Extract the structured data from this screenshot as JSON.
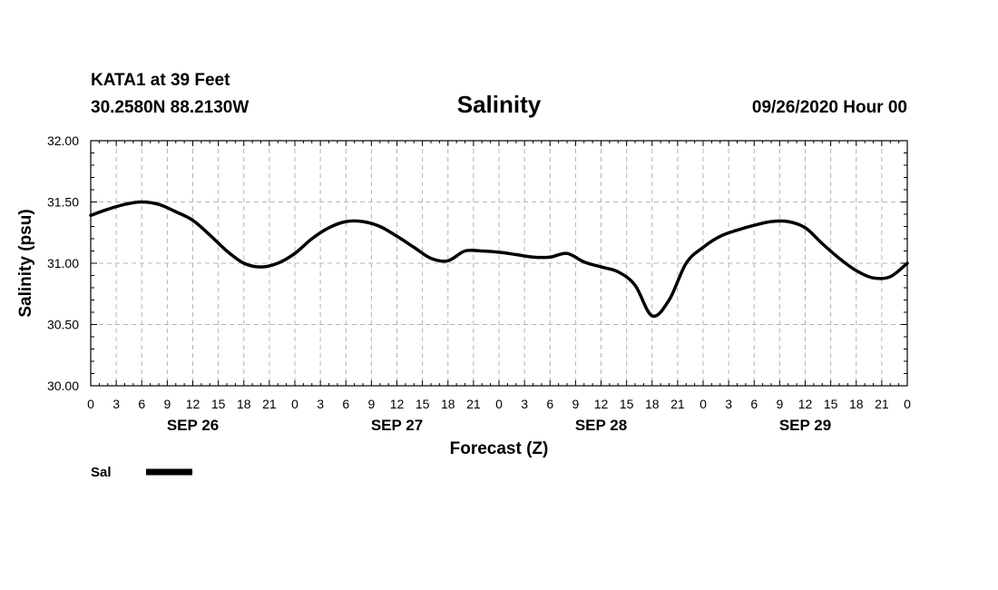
{
  "header": {
    "station": "KATA1 at 39 Feet",
    "coords": "30.2580N 88.2130W",
    "run": "09/26/2020 Hour 00"
  },
  "chart_data": {
    "type": "line",
    "title": "Salinity",
    "xlabel": "Forecast (Z)",
    "ylabel": "Salinity (psu)",
    "ylim": [
      30.0,
      32.0
    ],
    "xlim_hours": [
      0,
      96
    ],
    "grid": true,
    "y_ticks": [
      "30.00",
      "30.50",
      "31.00",
      "31.50",
      "32.00"
    ],
    "x_tick_labels": [
      "0",
      "3",
      "6",
      "9",
      "12",
      "15",
      "18",
      "21",
      "0",
      "3",
      "6",
      "9",
      "12",
      "15",
      "18",
      "21",
      "0",
      "3",
      "6",
      "9",
      "12",
      "15",
      "18",
      "21",
      "0",
      "3",
      "6",
      "9",
      "12",
      "15",
      "18",
      "21",
      "0"
    ],
    "day_labels": [
      {
        "label": "SEP 26",
        "hour": 12
      },
      {
        "label": "SEP 27",
        "hour": 36
      },
      {
        "label": "SEP 28",
        "hour": 60
      },
      {
        "label": "SEP 29",
        "hour": 84
      }
    ],
    "legend": {
      "placement": "bottom-left"
    },
    "series": [
      {
        "name": "Sal",
        "color": "#000000",
        "x": [
          0,
          2,
          4,
          6,
          8,
          10,
          12,
          14,
          16,
          18,
          20,
          22,
          24,
          26,
          28,
          30,
          32,
          34,
          36,
          38,
          40,
          42,
          44,
          46,
          48,
          50,
          52,
          54,
          56,
          58,
          60,
          62,
          64,
          66,
          68,
          70,
          72,
          74,
          76,
          78,
          80,
          82,
          84,
          86,
          88,
          90,
          92,
          94,
          96
        ],
        "y": [
          31.39,
          31.44,
          31.48,
          31.5,
          31.48,
          31.42,
          31.35,
          31.23,
          31.1,
          31.0,
          30.97,
          31.0,
          31.08,
          31.2,
          31.29,
          31.34,
          31.34,
          31.3,
          31.22,
          31.13,
          31.04,
          31.02,
          31.1,
          31.1,
          31.09,
          31.07,
          31.05,
          31.05,
          31.08,
          31.01,
          30.97,
          30.93,
          30.82,
          30.57,
          30.7,
          31.0,
          31.13,
          31.22,
          31.27,
          31.31,
          31.34,
          31.34,
          31.29,
          31.16,
          31.04,
          30.94,
          30.88,
          30.89,
          31.0
        ]
      }
    ]
  }
}
